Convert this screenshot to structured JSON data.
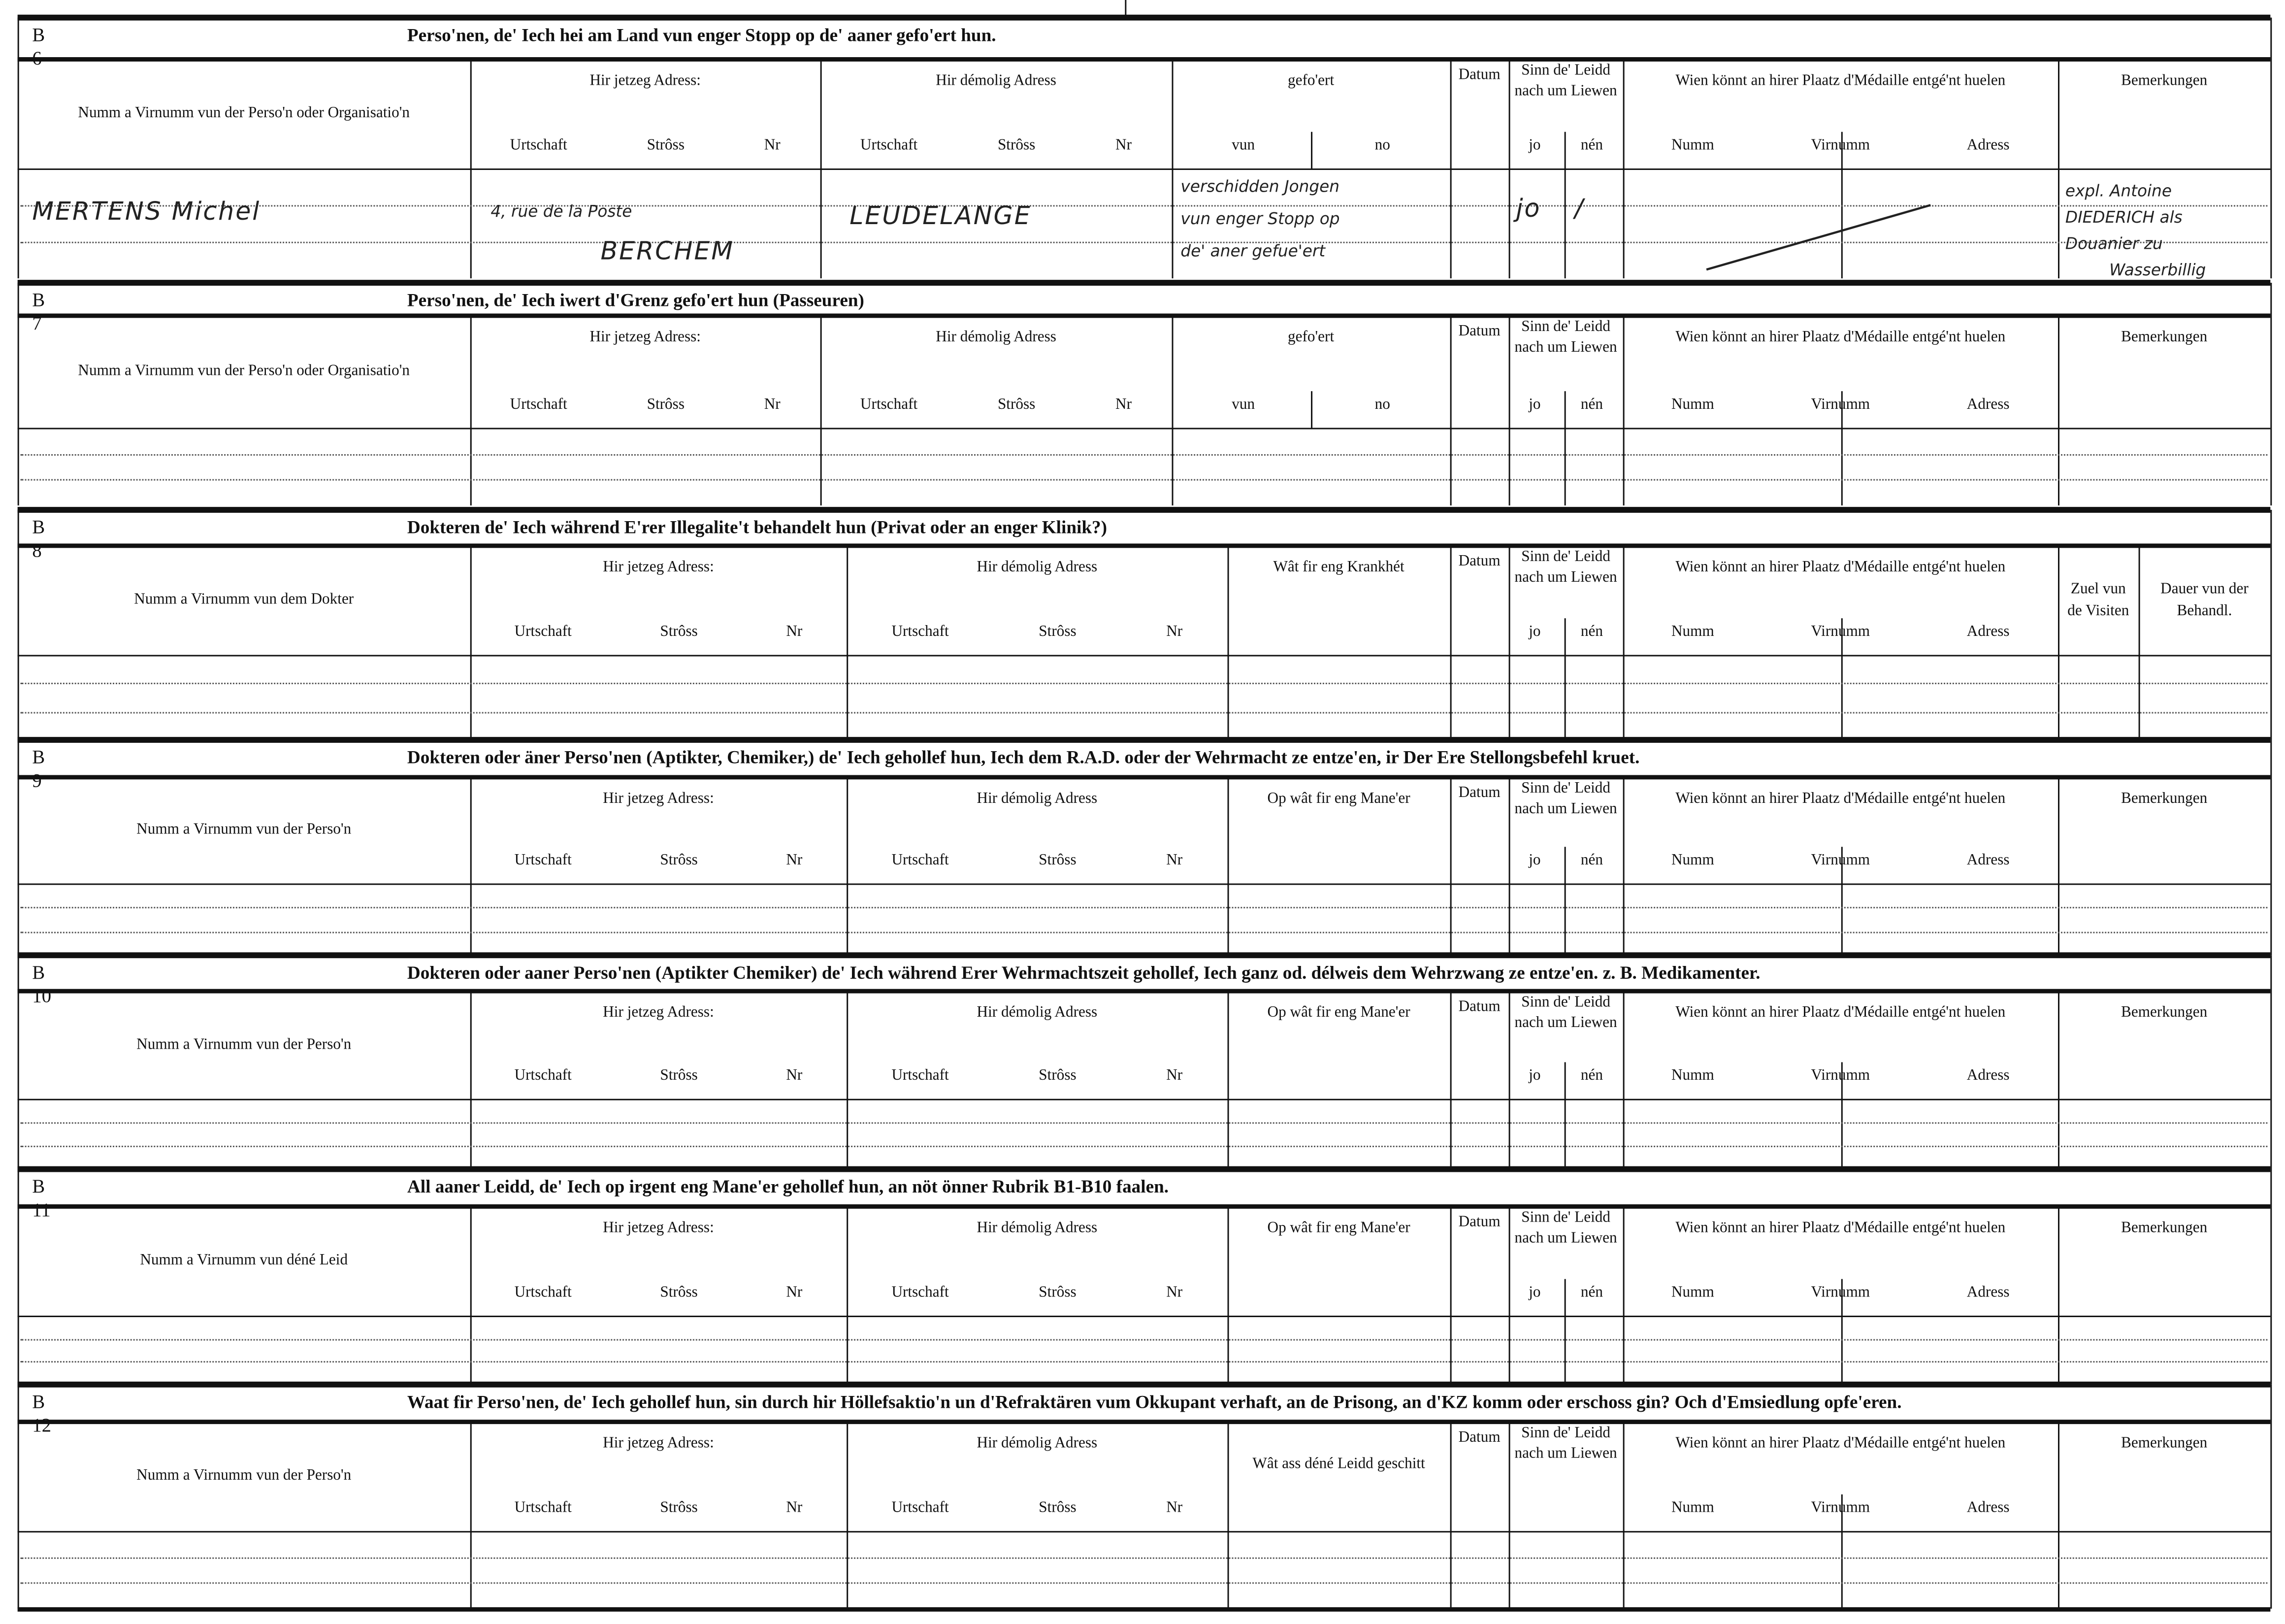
{
  "common": {
    "hir_jetzeg": "Hir jetzeg Adress:",
    "hir_demolig": "Hir démolig Adress",
    "urtschaft": "Urtschaft",
    "stross": "Strôss",
    "nr": "Nr",
    "datum": "Datum",
    "sinn_leidd": "Sinn de' Leidd nach um Liewen",
    "jo": "jo",
    "nen": "nén",
    "medaille": "Wien könnt an hirer Plaatz d'Médaille entgé'nt huelen",
    "numm": "Numm",
    "virnumm": "Virnumm",
    "adress": "Adress",
    "bemerkungen": "Bemerkungen"
  },
  "sections": [
    {
      "id": "B 6",
      "title": "Perso'nen, de' Iech hei am Land vun enger Stopp op de' aaner gefo'ert hun.",
      "col1": "Numm a Virnumm vun der Perso'n oder Organisatio'n",
      "col4": "gefo'ert",
      "col4_subs": [
        "vun",
        "no"
      ],
      "jo_nen": true
    },
    {
      "id": "B 7",
      "title": "Perso'nen, de' Iech iwert d'Grenz gefo'ert hun (Passeuren)",
      "col1": "Numm a Virnumm vun der Perso'n oder Organisatio'n",
      "col4": "gefo'ert",
      "col4_subs": [
        "vun",
        "no"
      ],
      "jo_nen": true
    },
    {
      "id": "B 8",
      "title": "Dokteren de' Iech während E'rer Illegalite't behandelt hun (Privat oder an enger Klinik?)",
      "col1": "Numm a Virnumm vun dem Dokter",
      "col4": "Wât fir eng Krankhét",
      "jo_nen": true,
      "extra": [
        "Zuel vun de Visiten",
        "Dauer vun der Behandl."
      ]
    },
    {
      "id": "B 9",
      "title": "Dokteren oder äner Perso'nen (Aptikter, Chemiker,) de' Iech gehollef hun, Iech dem R.A.D. oder der Wehrmacht ze entze'en, ir Der Ere Stellongsbefehl kruet.",
      "col1": "Numm a Virnumm vun der Perso'n",
      "col4": "Op wât fir eng Mane'er",
      "jo_nen": true
    },
    {
      "id": "B 10",
      "title": "Dokteren oder aaner Perso'nen (Aptikter Chemiker) de' Iech während Erer Wehrmachtszeit gehollef, Iech ganz od. délweis dem Wehrzwang ze entze'en. z. B. Medikamenter.",
      "col1": "Numm a Virnumm vun der Perso'n",
      "col4": "Op wât fir eng Mane'er",
      "jo_nen": true
    },
    {
      "id": "B 11",
      "title": "All aaner Leidd, de' Iech op irgent eng Mane'er gehollef hun, an nöt önner Rubrik B1-B10 faalen.",
      "col1": "Numm a Virnumm vun déné Leid",
      "col4": "Op wât fir eng Mane'er",
      "jo_nen": true
    },
    {
      "id": "B 12",
      "title": "Waat fir Perso'nen, de' Iech gehollef hun, sin durch hir Höllefsaktio'n un d'Refraktären vum Okkupant verhaft, an de Prisong, an d'KZ komm oder erschoss gin? Och d'Emsiedlung opfe'eren.",
      "col1": "Numm a Virnumm vun der Perso'n",
      "col4": "Wât ass déné Leidd geschitt",
      "jo_nen": false
    }
  ],
  "entry_b6": {
    "name": "MERTENS  Michel",
    "current_street": "4, rue de la Poste",
    "current_town": "BERCHEM",
    "former_town": "LEUDELANGE",
    "gefoert": [
      "verschidden Jongen",
      "vun enger Stopp op",
      "de' aner gefue'ert"
    ],
    "jo": "jo",
    "nen": "/",
    "remarks": [
      "expl. Antoine",
      "DIEDERICH als",
      "Douanier zu",
      "Wasserbillig"
    ]
  }
}
